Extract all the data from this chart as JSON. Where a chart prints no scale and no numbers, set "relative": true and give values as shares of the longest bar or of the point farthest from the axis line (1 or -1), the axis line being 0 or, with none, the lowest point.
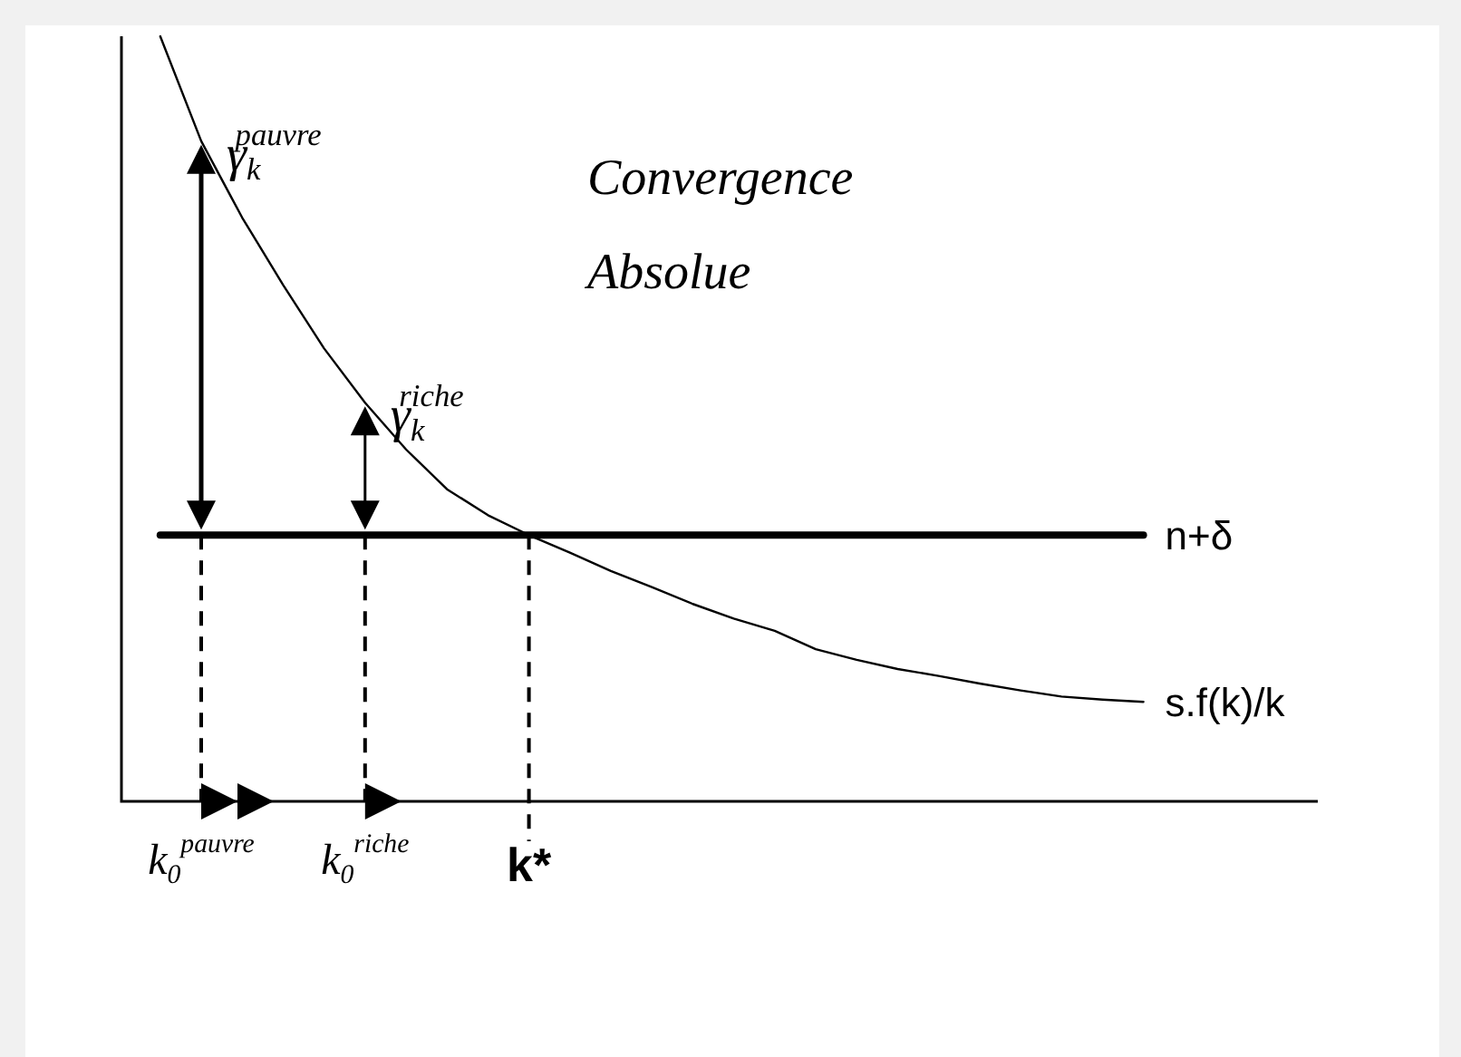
{
  "chart_data": {
    "type": "line",
    "relative": true,
    "title": "Convergence Absolue",
    "categories": [
      null,
      "k$_{0}$$^{pauvre}$",
      null,
      null,
      null,
      "k$_{0}$$^{riche}$",
      null,
      null,
      null,
      "k*",
      null,
      null,
      null,
      null,
      null,
      null,
      null,
      null,
      null,
      null,
      null,
      null,
      null,
      null,
      null
    ],
    "series": [
      {
        "name": "n+δ",
        "color": "#000000",
        "values": [
          0.348,
          0.348,
          0.348,
          0.348,
          0.348,
          0.348,
          0.348,
          0.348,
          0.348,
          0.348,
          0.348,
          0.348,
          0.348,
          0.348,
          0.348,
          0.348,
          0.348,
          0.348,
          0.348,
          0.348,
          0.348,
          0.348,
          0.348,
          0.348,
          0.348
        ]
      },
      {
        "name": "s.f(k)/k",
        "color": "#000000",
        "values": [
          1,
          0.863,
          0.763,
          0.675,
          0.592,
          0.521,
          0.46,
          0.408,
          0.374,
          0.348,
          0.325,
          0.301,
          0.28,
          0.258,
          0.239,
          0.223,
          0.199,
          0.185,
          0.173,
          0.164,
          0.154,
          0.145,
          0.137,
          0.133,
          0.13
        ]
      }
    ],
    "annotations": [
      {
        "text": "γ$_{k}$$^{pauvre}$",
        "x": "k$_{0}$$^{pauvre}$"
      },
      {
        "text": "γ$_{k}$$^{riche}$",
        "x": "k$_{0}$$^{riche}$"
      }
    ],
    "grid": false,
    "marker": "none",
    "line_style": "solid"
  }
}
